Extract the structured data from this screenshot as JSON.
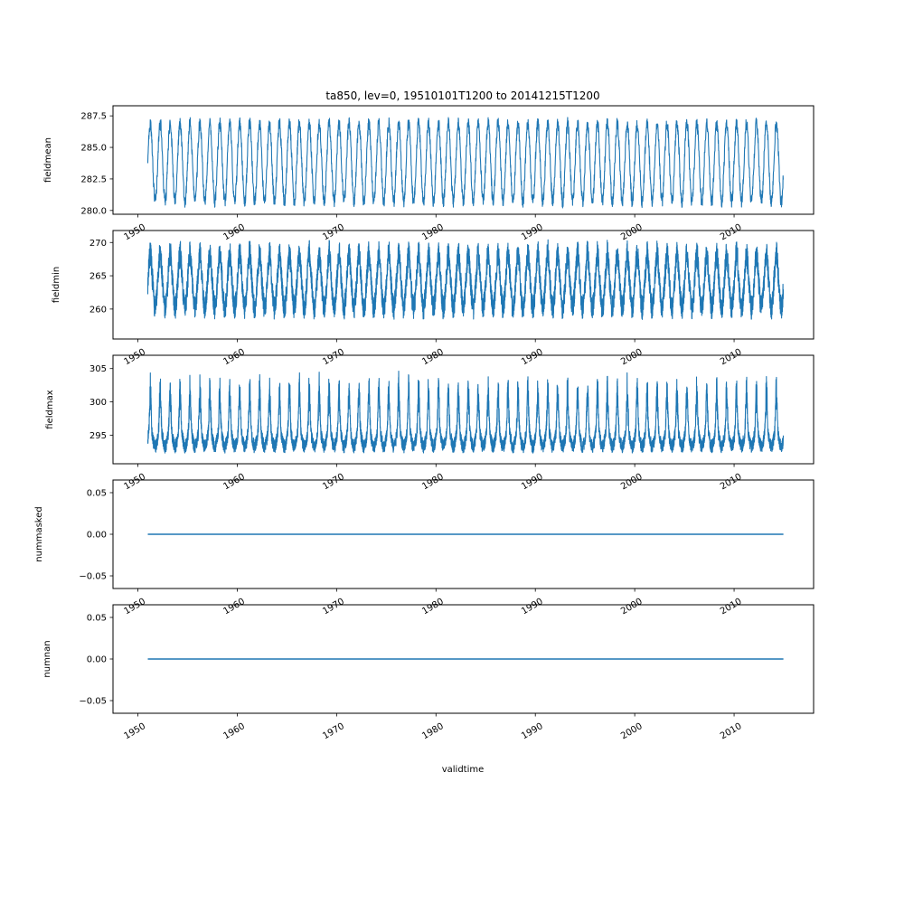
{
  "title": "ta850, lev=0, 19510101T1200 to 20141215T1200",
  "line_color": "#1f77b4",
  "x_axis": {
    "label": "validtime",
    "xlim": [
      1947.5,
      2018.0
    ],
    "data_range": [
      1951.0,
      2014.96
    ],
    "ticks": [
      1950,
      1960,
      1970,
      1980,
      1990,
      2000,
      2010
    ],
    "labels": [
      "1950",
      "1960",
      "1970",
      "1980",
      "1990",
      "2000",
      "2010"
    ]
  },
  "chart_data": [
    {
      "type": "line",
      "name": "fieldmean",
      "ylabel": "fieldmean",
      "ylim": [
        279.7,
        288.3
      ],
      "yticks": {
        "values": [
          280.0,
          282.5,
          285.0,
          287.5
        ],
        "labels": [
          "280.0",
          "282.5",
          "285.0",
          "287.5"
        ]
      },
      "observed_range": [
        280.0,
        287.7
      ],
      "pattern": "annual seasonal oscillation, 1951-2014",
      "generator": {
        "kind": "seasonal",
        "base": 283.8,
        "amplitude": 3.1,
        "noise": 0.5,
        "spike_amp": 0,
        "samples_per_year": 52,
        "seed": 42
      }
    },
    {
      "type": "line",
      "name": "fieldmin",
      "ylabel": "fieldmin",
      "ylim": [
        255.5,
        271.8
      ],
      "yticks": {
        "values": [
          260,
          265,
          270
        ],
        "labels": [
          "260",
          "265",
          "270"
        ]
      },
      "observed_range": [
        257.0,
        270.5
      ],
      "pattern": "annual seasonal oscillation with high-frequency noise, 1951-2014",
      "generator": {
        "kind": "seasonal",
        "base": 263.8,
        "amplitude": 3.6,
        "noise": 1.8,
        "spike_amp": 1.5,
        "samples_per_year": 104,
        "seed": 7
      }
    },
    {
      "type": "line",
      "name": "fieldmax",
      "ylabel": "fieldmax",
      "ylim": [
        290.7,
        307.0
      ],
      "yticks": {
        "values": [
          295,
          300,
          305
        ],
        "labels": [
          "295",
          "300",
          "305"
        ]
      },
      "observed_range": [
        292.0,
        305.5
      ],
      "pattern": "noisy band near 293-298 with annual upward spikes to ~300-305, 1951-2014",
      "generator": {
        "kind": "seasonal",
        "base": 294.6,
        "amplitude": 1.3,
        "noise": 1.0,
        "spike_amp": 8,
        "samples_per_year": 104,
        "seed": 13
      }
    },
    {
      "type": "line",
      "name": "nummasked",
      "ylabel": "nummasked",
      "ylim": [
        -0.0652,
        0.0652
      ],
      "yticks": {
        "values": [
          -0.05,
          0.0,
          0.05
        ],
        "labels": [
          "−0.05",
          "0.00",
          "0.05"
        ]
      },
      "observed_range": [
        0.0,
        0.0
      ],
      "pattern": "constant zero line, 1951-2014",
      "generator": {
        "kind": "constant",
        "value": 0.0
      }
    },
    {
      "type": "line",
      "name": "numnan",
      "ylabel": "numnan",
      "ylim": [
        -0.0652,
        0.0652
      ],
      "yticks": {
        "values": [
          -0.05,
          0.0,
          0.05
        ],
        "labels": [
          "−0.05",
          "0.00",
          "0.05"
        ]
      },
      "observed_range": [
        0.0,
        0.0
      ],
      "pattern": "constant zero line, 1951-2014",
      "generator": {
        "kind": "constant",
        "value": 0.0
      }
    }
  ]
}
